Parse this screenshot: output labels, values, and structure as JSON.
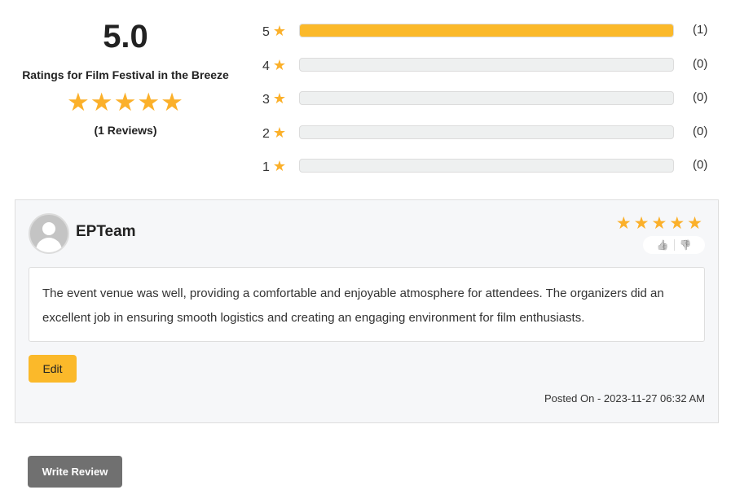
{
  "summary": {
    "average": "5.0",
    "title": "Ratings for Film Festival in the Breeze",
    "stars": "★★★★★",
    "reviews_count": "(1 Reviews)",
    "rating_value": 5
  },
  "breakdown": [
    {
      "label": "5",
      "count": "(1)",
      "fraction": 1
    },
    {
      "label": "4",
      "count": "(0)",
      "fraction": 0
    },
    {
      "label": "3",
      "count": "(0)",
      "fraction": 0
    },
    {
      "label": "2",
      "count": "(0)",
      "fraction": 0
    },
    {
      "label": "1",
      "count": "(0)",
      "fraction": 0
    }
  ],
  "star_glyph": "★",
  "review": {
    "author": "EPTeam",
    "stars": "★★★★★",
    "rating": 5,
    "like_icon": "👍",
    "dislike_icon": "👎",
    "text": "The event venue was well, providing a comfortable and enjoyable atmosphere for attendees. The organizers did an excellent job in ensuring smooth logistics and creating an engaging environment for film enthusiasts.",
    "edit_label": "Edit",
    "posted": "Posted On - 2023-11-27 06:32 AM"
  },
  "write_review_label": "Write Review",
  "colors": {
    "star": "#fbb02a",
    "bar_fill": "#fbb92a",
    "button_dark": "#707070"
  }
}
